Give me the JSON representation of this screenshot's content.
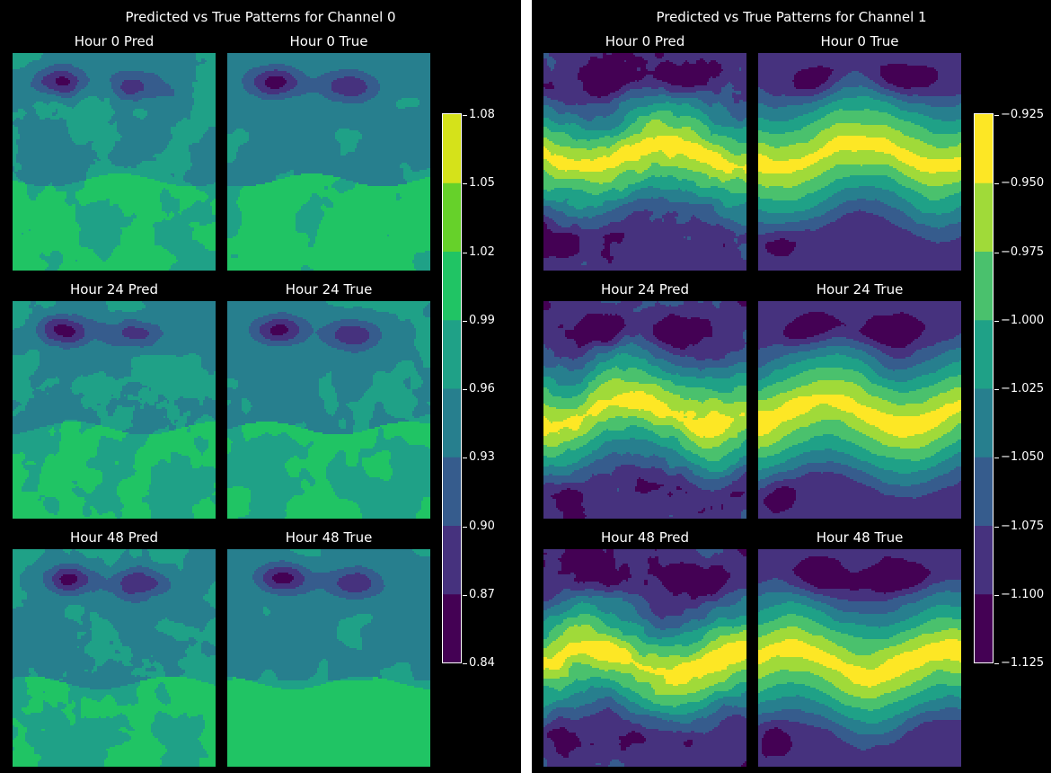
{
  "colors": {
    "background": "#000000",
    "text": "#ffffff",
    "levels": [
      "#440154",
      "#46327e",
      "#365c8d",
      "#277f8e",
      "#1fa187",
      "#4ac16d",
      "#a0da39",
      "#fde725"
    ],
    "levels_ch0_in_use": [
      "#440154",
      "#46327e",
      "#365c8d",
      "#277f8e",
      "#1fa187",
      "#20c464",
      "#66d12a",
      "#d5e21a"
    ]
  },
  "chart_data": [
    {
      "type": "heatmap",
      "title": "Predicted vs True Patterns for Channel 0",
      "channel": 0,
      "panels": [
        {
          "title": "Hour 0 Pred",
          "kind": "pred",
          "hour": 0
        },
        {
          "title": "Hour 0 True",
          "kind": "true",
          "hour": 0
        },
        {
          "title": "Hour 24 Pred",
          "kind": "pred",
          "hour": 24
        },
        {
          "title": "Hour 24 True",
          "kind": "true",
          "hour": 24
        },
        {
          "title": "Hour 48 Pred",
          "kind": "pred",
          "hour": 48
        },
        {
          "title": "Hour 48 True",
          "kind": "true",
          "hour": 48
        }
      ],
      "colorbar": {
        "ticks": [
          "1.08",
          "1.05",
          "1.02",
          "0.99",
          "0.96",
          "0.93",
          "0.90",
          "0.87",
          "0.84"
        ],
        "min": 0.84,
        "max": 1.08,
        "levels": 8
      }
    },
    {
      "type": "heatmap",
      "title": "Predicted vs True Patterns for Channel 1",
      "channel": 1,
      "panels": [
        {
          "title": "Hour 0 Pred",
          "kind": "pred",
          "hour": 0
        },
        {
          "title": "Hour 0 True",
          "kind": "true",
          "hour": 0
        },
        {
          "title": "Hour 24 Pred",
          "kind": "pred",
          "hour": 24
        },
        {
          "title": "Hour 24 True",
          "kind": "true",
          "hour": 24
        },
        {
          "title": "Hour 48 Pred",
          "kind": "pred",
          "hour": 48
        },
        {
          "title": "Hour 48 True",
          "kind": "true",
          "hour": 48
        }
      ],
      "colorbar": {
        "ticks": [
          "−0.925",
          "−0.950",
          "−0.975",
          "−1.000",
          "−1.025",
          "−1.050",
          "−1.075",
          "−1.100",
          "−1.125"
        ],
        "min": -1.125,
        "max": -0.925,
        "levels": 8
      }
    }
  ]
}
